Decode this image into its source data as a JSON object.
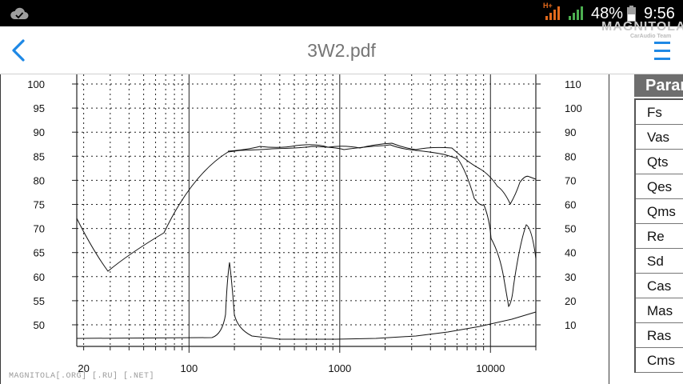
{
  "status_bar": {
    "network_type": "H+",
    "battery_percent": "48%",
    "time": "9:56"
  },
  "app_bar": {
    "title": "3W2.pdf",
    "logo_line1": "MAGNITOLA",
    "logo_line2": "CarAudio Team"
  },
  "graph": {
    "left_axis_ticks": [
      "100",
      "95",
      "90",
      "85",
      "80",
      "75",
      "70",
      "65",
      "60",
      "55",
      "50"
    ],
    "right_axis_ticks": [
      "110",
      "100",
      "90",
      "80",
      "70",
      "60",
      "50",
      "40",
      "30",
      "20",
      "10"
    ],
    "x_axis_ticks": [
      "20",
      "100",
      "1000",
      "10000"
    ]
  },
  "params": {
    "header": "Paran",
    "rows": [
      "Fs",
      "Vas",
      "Qts",
      "Qes",
      "Qms",
      "Re",
      "Sd",
      "Cas",
      "Mas",
      "Ras",
      "Cms"
    ]
  },
  "watermark": "MAGNITOLA[.ORG] [.RU] [.NET]",
  "colors": {
    "status_bar_bg": "#000000",
    "accent_blue": "#1e88e5",
    "signal_orange": "#e46a1c",
    "signal_green": "#4caf50",
    "title_gray": "#757575",
    "param_header_bg": "#6e6e6e"
  }
}
